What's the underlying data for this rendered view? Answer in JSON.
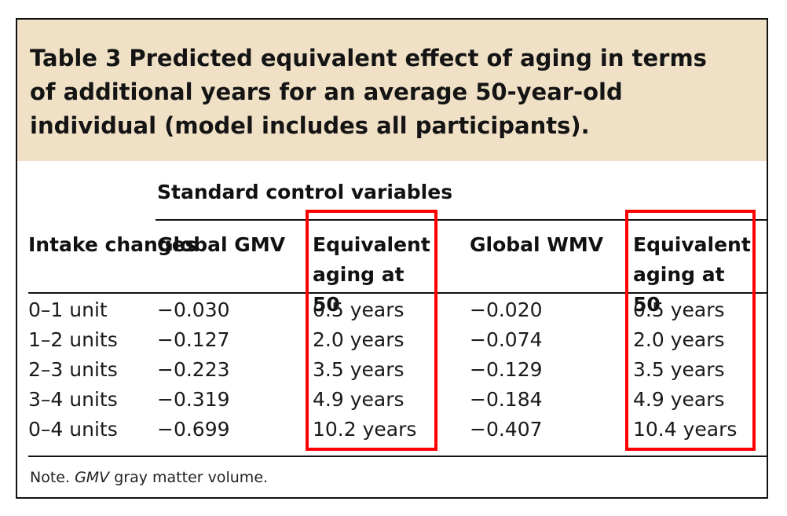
{
  "table": {
    "title": "Table 3 Predicted equivalent effect of aging in terms of additional years for an average 50-year-old individual (model includes all participants).",
    "group_header": "Standard control variables",
    "columns": {
      "intake": "Intake changes",
      "gmv": "Global GMV",
      "aging_gmv": "Equivalent aging at 50",
      "wmv": "Global WMV",
      "aging_wmv": "Equivalent aging at 50"
    },
    "rows": [
      {
        "intake": "0–1 unit",
        "gmv": "−0.030",
        "aging_gmv": "0.5 years",
        "wmv": "−0.020",
        "aging_wmv": "0.5 years"
      },
      {
        "intake": "1–2 units",
        "gmv": "−0.127",
        "aging_gmv": "2.0 years",
        "wmv": "−0.074",
        "aging_wmv": "2.0 years"
      },
      {
        "intake": "2–3 units",
        "gmv": "−0.223",
        "aging_gmv": "3.5 years",
        "wmv": "−0.129",
        "aging_wmv": "3.5 years"
      },
      {
        "intake": "3–4 units",
        "gmv": "−0.319",
        "aging_gmv": "4.9 years",
        "wmv": "−0.184",
        "aging_wmv": "4.9 years"
      },
      {
        "intake": "0–4 units",
        "gmv": "−0.699",
        "aging_gmv": "10.2 years",
        "wmv": "−0.407",
        "aging_wmv": "10.4 years"
      }
    ],
    "note_prefix": "Note. ",
    "note_abbr": "GMV",
    "note_text": " gray matter volume."
  },
  "colors": {
    "title_band": "#f0e1c6",
    "highlight": "#ff0000"
  }
}
